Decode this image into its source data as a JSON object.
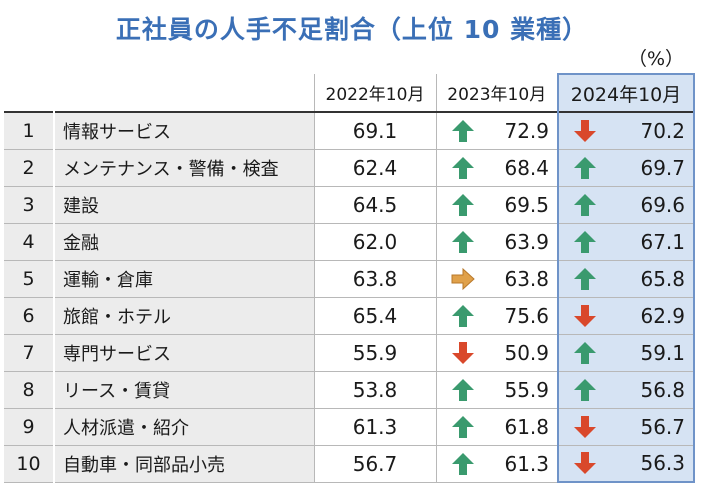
{
  "title": "正社員の人手不足割合（上位 10 業種）",
  "unit_label": "（%）",
  "columns": [
    "",
    "",
    "2022年10月",
    "2023年10月",
    "2024年10月"
  ],
  "colors": {
    "up": "#3a9a6e",
    "down": "#d9482b",
    "flat": "#e0a14a",
    "highlight": "#d6e3f3",
    "title": "#3a6fb6"
  },
  "rows": [
    {
      "rank": "1",
      "industry": "情報サービス",
      "y2022": "69.1",
      "y2023": "72.9",
      "dir2023": "up",
      "y2024": "70.2",
      "dir2024": "down"
    },
    {
      "rank": "2",
      "industry": "メンテナンス・警備・検査",
      "y2022": "62.4",
      "y2023": "68.4",
      "dir2023": "up",
      "y2024": "69.7",
      "dir2024": "up"
    },
    {
      "rank": "3",
      "industry": "建設",
      "y2022": "64.5",
      "y2023": "69.5",
      "dir2023": "up",
      "y2024": "69.6",
      "dir2024": "up"
    },
    {
      "rank": "4",
      "industry": "金融",
      "y2022": "62.0",
      "y2023": "63.9",
      "dir2023": "up",
      "y2024": "67.1",
      "dir2024": "up"
    },
    {
      "rank": "5",
      "industry": "運輸・倉庫",
      "y2022": "63.8",
      "y2023": "63.8",
      "dir2023": "flat",
      "y2024": "65.8",
      "dir2024": "up"
    },
    {
      "rank": "6",
      "industry": "旅館・ホテル",
      "y2022": "65.4",
      "y2023": "75.6",
      "dir2023": "up",
      "y2024": "62.9",
      "dir2024": "down"
    },
    {
      "rank": "7",
      "industry": "専門サービス",
      "y2022": "55.9",
      "y2023": "50.9",
      "dir2023": "down",
      "y2024": "59.1",
      "dir2024": "up"
    },
    {
      "rank": "8",
      "industry": "リース・賃貸",
      "y2022": "53.8",
      "y2023": "55.9",
      "dir2023": "up",
      "y2024": "56.8",
      "dir2024": "up"
    },
    {
      "rank": "9",
      "industry": "人材派遣・紹介",
      "y2022": "61.3",
      "y2023": "61.8",
      "dir2023": "up",
      "y2024": "56.7",
      "dir2024": "down"
    },
    {
      "rank": "10",
      "industry": "自動車・同部品小売",
      "y2022": "56.7",
      "y2023": "61.3",
      "dir2023": "up",
      "y2024": "56.3",
      "dir2024": "down"
    }
  ],
  "chart_data": {
    "type": "table",
    "title": "正社員の人手不足割合（上位 10 業種）",
    "unit": "%",
    "columns": [
      "2022年10月",
      "2023年10月",
      "2024年10月"
    ],
    "categories": [
      "情報サービス",
      "メンテナンス・警備・検査",
      "建設",
      "金融",
      "運輸・倉庫",
      "旅館・ホテル",
      "専門サービス",
      "リース・賃貸",
      "人材派遣・紹介",
      "自動車・同部品小売"
    ],
    "series": [
      {
        "name": "2022年10月",
        "values": [
          69.1,
          62.4,
          64.5,
          62.0,
          63.8,
          65.4,
          55.9,
          53.8,
          61.3,
          56.7
        ]
      },
      {
        "name": "2023年10月",
        "values": [
          72.9,
          68.4,
          69.5,
          63.9,
          63.8,
          75.6,
          50.9,
          55.9,
          61.8,
          61.3
        ]
      },
      {
        "name": "2024年10月",
        "values": [
          70.2,
          69.7,
          69.6,
          67.1,
          65.8,
          62.9,
          59.1,
          56.8,
          56.7,
          56.3
        ]
      }
    ]
  }
}
